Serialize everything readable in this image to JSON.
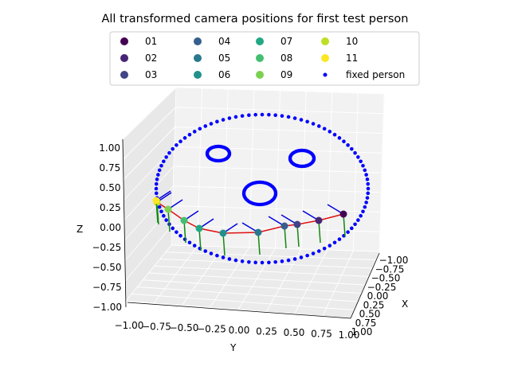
{
  "chart_data": {
    "type": "scatter",
    "title": "All transformed camera positions for first test person",
    "xlabel": "X",
    "ylabel": "Y",
    "zlabel": "Z",
    "xlim": [
      -1.0,
      1.0
    ],
    "ylim": [
      -1.0,
      1.0
    ],
    "zlim": [
      -1.0,
      1.0
    ],
    "x_ticks": [
      "−1.00",
      "−0.75",
      "−0.50",
      "−0.25",
      "0.00",
      "0.25",
      "0.50",
      "0.75",
      "1.00"
    ],
    "y_ticks": [
      "−1.00",
      "−0.75",
      "−0.50",
      "−0.25",
      "0.00",
      "0.25",
      "0.50",
      "0.75",
      "1.00"
    ],
    "z_ticks": [
      "−1.00",
      "−0.75",
      "−0.50",
      "−0.25",
      "0.00",
      "0.25",
      "0.50",
      "0.75",
      "1.00"
    ],
    "legend_placement": "top-center",
    "camera_series": [
      {
        "name": "01",
        "color": "#440154"
      },
      {
        "name": "02",
        "color": "#482475"
      },
      {
        "name": "03",
        "color": "#414487"
      },
      {
        "name": "04",
        "color": "#355f8d"
      },
      {
        "name": "05",
        "color": "#2a788e"
      },
      {
        "name": "06",
        "color": "#21918c"
      },
      {
        "name": "07",
        "color": "#22a884"
      },
      {
        "name": "08",
        "color": "#44bf70"
      },
      {
        "name": "09",
        "color": "#7ad151"
      },
      {
        "name": "10",
        "color": "#bddf26"
      },
      {
        "name": "11",
        "color": "#fde725"
      }
    ],
    "camera_positions": [
      {
        "name": "01",
        "x": 0.0,
        "y": 0.95,
        "z": 0.0
      },
      {
        "name": "02",
        "x": 0.0,
        "y": 0.73,
        "z": 0.0
      },
      {
        "name": "03",
        "x": 0.0,
        "y": 0.52,
        "z": 0.0
      },
      {
        "name": "04",
        "x": 0.0,
        "y": 0.32,
        "z": 0.0
      },
      {
        "name": "05",
        "x": 0.0,
        "y": 0.12,
        "z": 0.0
      },
      {
        "name": "06",
        "x": 0.0,
        "y": -0.12,
        "z": 0.0
      },
      {
        "name": "07",
        "x": 0.0,
        "y": -0.33,
        "z": 0.0
      },
      {
        "name": "08",
        "x": 0.0,
        "y": -0.55,
        "z": 0.0
      },
      {
        "name": "09",
        "x": 0.0,
        "y": -0.75,
        "z": 0.0
      },
      {
        "name": "10",
        "x": 0.0,
        "y": -0.9,
        "z": 0.0
      },
      {
        "name": "11",
        "x": 0.0,
        "y": -1.0,
        "z": 0.0
      }
    ],
    "fixed_person": {
      "name": "fixed person",
      "color": "#0000ff"
    }
  }
}
